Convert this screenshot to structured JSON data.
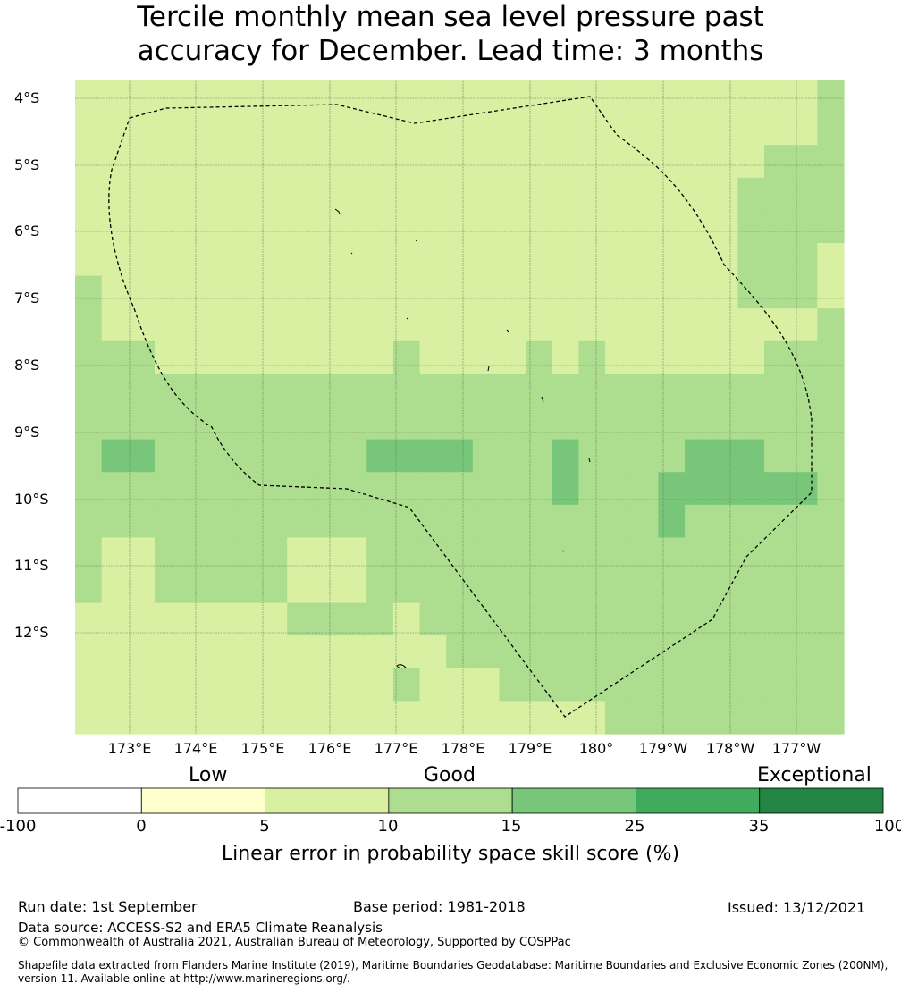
{
  "title_line1": "Tercile monthly mean sea level pressure past",
  "title_line2": "accuracy for December. Lead time: 3 months",
  "lat_labels": [
    "4°S",
    "5°S",
    "6°S",
    "7°S",
    "8°S",
    "9°S",
    "10°S",
    "11°S",
    "12°S"
  ],
  "lon_labels": [
    "173°E",
    "174°E",
    "175°E",
    "176°E",
    "177°E",
    "178°E",
    "179°E",
    "180°",
    "179°W",
    "178°W",
    "177°W"
  ],
  "legend": {
    "categories": [
      "Low",
      "Good",
      "Exceptional"
    ],
    "ticks": [
      "-100",
      "0",
      "5",
      "10",
      "15",
      "25",
      "35",
      "100"
    ],
    "colors": [
      "#ffffff",
      "#ffffcc",
      "#d9f0a3",
      "#addd8e",
      "#78c679",
      "#41ab5d",
      "#238443"
    ],
    "title": "Linear error in probability space skill score (%)"
  },
  "footer": {
    "run_date": "Run date: 1st September",
    "base_period": "Base period: 1981-2018",
    "issued": "Issued: 13/12/2021",
    "data_source": "Data source: ACCESS-S2 and ERA5 Climate Reanalysis",
    "copyright": "© Commonwealth of Australia 2021, Australian Bureau of Meteorology, Supported by COSPPac",
    "shapefile_line1": "Shapefile data extracted from Flanders Marine Institute (2019), Maritime Boundaries Geodatabase: Maritime Boundaries and Exclusive Economic Zones (200NM),",
    "shapefile_line2": "version 11. Available online at http://www.marineregions.org/."
  },
  "map_data": {
    "grid_codes": [
      "11111111111111111111111111112",
      "11111111111111111111111111112",
      "11111111111111111111111111222",
      "11111111111111111111111112222",
      "11111111111111111111111112222",
      "11111111111111111111111112221",
      "21111111111111111111111112221",
      "21111111111111111111111111112",
      "22211111111121111212111111222",
      "22222222222222222222222222222",
      "22222222222222222222222222222",
      "23322222222333322232222333222",
      "22222222222222222232223333332",
      "22222222222222222222223222222",
      "21122222111222222222222222222",
      "21122222111222222222222222222",
      "11111111222212222222222222222",
      "11111111111111222222222222222",
      "11111111111121112222222222222",
      "11111111111111111111222222222"
    ]
  }
}
